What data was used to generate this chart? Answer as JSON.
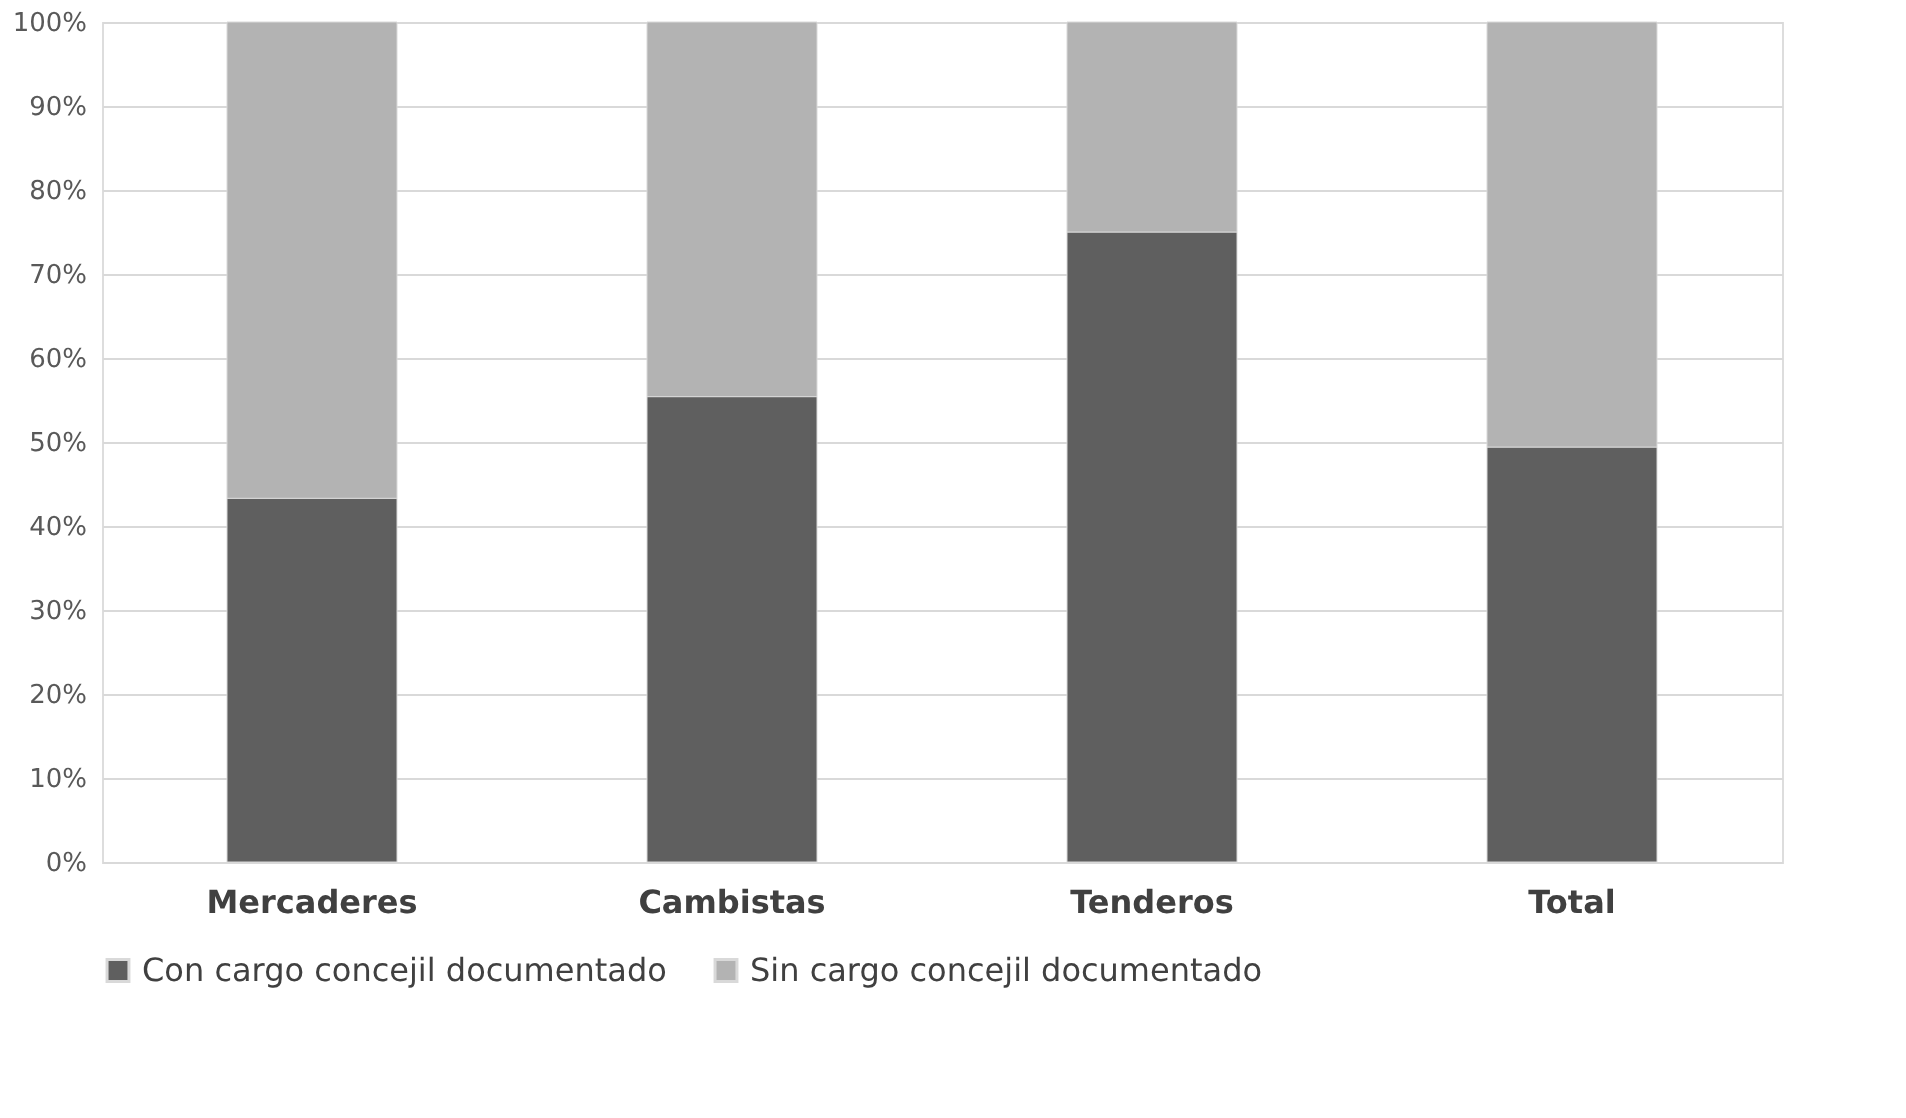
{
  "chart_data": {
    "type": "bar",
    "stacked": true,
    "categories": [
      "Mercaderes",
      "Cambistas",
      "Tenderos",
      "Total"
    ],
    "series": [
      {
        "name": "Con cargo concejil documentado",
        "color": "#5f5f5f",
        "values": [
          43.3,
          55.4,
          75.0,
          49.4
        ]
      },
      {
        "name": "Sin cargo concejil documentado",
        "color": "#b3b3b3",
        "values": [
          56.7,
          44.6,
          25.0,
          50.6
        ]
      }
    ],
    "ylim": [
      0,
      100
    ],
    "yticks": [
      {
        "value": 0,
        "label": "0%"
      },
      {
        "value": 10,
        "label": "10%"
      },
      {
        "value": 20,
        "label": "20%"
      },
      {
        "value": 30,
        "label": "30%"
      },
      {
        "value": 40,
        "label": "40%"
      },
      {
        "value": 50,
        "label": "50%"
      },
      {
        "value": 60,
        "label": "60%"
      },
      {
        "value": 70,
        "label": "70%"
      },
      {
        "value": 80,
        "label": "80%"
      },
      {
        "value": 90,
        "label": "90%"
      },
      {
        "value": 100,
        "label": "100%"
      }
    ],
    "grid": "y",
    "legend": "bottom"
  }
}
